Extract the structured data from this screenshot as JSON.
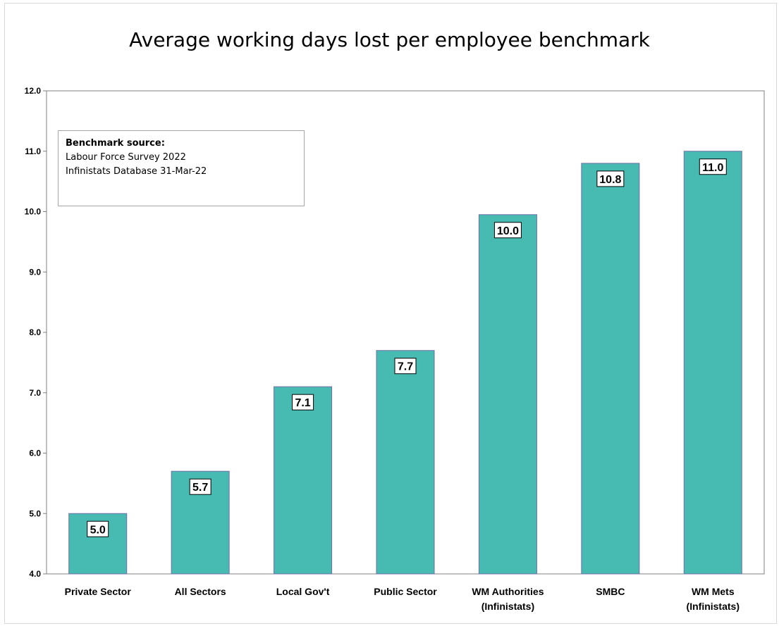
{
  "chart_data": {
    "type": "bar",
    "title": "Average working days lost per employee benchmark",
    "categories": [
      [
        "Private Sector"
      ],
      [
        "All Sectors"
      ],
      [
        "Local Gov't"
      ],
      [
        "Public Sector"
      ],
      [
        "WM Authorities",
        "(Infinistats)"
      ],
      [
        "SMBC"
      ],
      [
        "WM Mets",
        "(Infinistats)"
      ]
    ],
    "values": [
      5.0,
      5.7,
      7.1,
      7.7,
      9.95,
      10.8,
      11.0
    ],
    "data_labels": [
      "5.0",
      "5.7",
      "7.1",
      "7.7",
      "10.0",
      "10.8",
      "11.0"
    ],
    "y_ticks": [
      "4.0",
      "5.0",
      "6.0",
      "7.0",
      "8.0",
      "9.0",
      "10.0",
      "11.0",
      "12.0"
    ],
    "ylim": [
      4.0,
      12.0
    ],
    "xlabel": "",
    "ylabel": "",
    "grid": false,
    "bar_color": "#47bbb1",
    "annotation": {
      "heading": "Benchmark source:",
      "lines": [
        "Labour Force Survey 2022",
        "Infinistats Database 31-Mar-22"
      ]
    }
  }
}
